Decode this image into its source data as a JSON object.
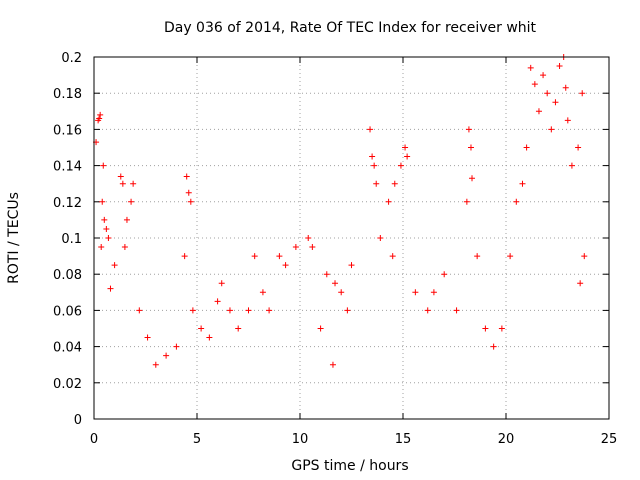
{
  "chart_data": {
    "type": "scatter",
    "title": "Day 036 of 2014, Rate Of TEC Index for receiver whit",
    "xlabel": "GPS time / hours",
    "ylabel": "ROTI / TECUs",
    "xlim": [
      0,
      25
    ],
    "ylim": [
      0,
      0.2
    ],
    "xticks": [
      "0",
      "5",
      "10",
      "15",
      "20",
      "25"
    ],
    "yticks": [
      "0",
      "0.02",
      "0.04",
      "0.06",
      "0.08",
      "0.1",
      "0.12",
      "0.14",
      "0.16",
      "0.18",
      "0.2"
    ],
    "grid": true,
    "marker": "+",
    "color": "#ff0000",
    "series": [
      {
        "points": [
          [
            0.1,
            0.153
          ],
          [
            0.2,
            0.165
          ],
          [
            0.3,
            0.168
          ],
          [
            0.25,
            0.166
          ],
          [
            0.4,
            0.12
          ],
          [
            0.5,
            0.11
          ],
          [
            0.6,
            0.105
          ],
          [
            0.45,
            0.14
          ],
          [
            0.35,
            0.095
          ],
          [
            0.7,
            0.1
          ],
          [
            0.8,
            0.072
          ],
          [
            1.0,
            0.085
          ],
          [
            1.3,
            0.134
          ],
          [
            1.4,
            0.13
          ],
          [
            1.6,
            0.11
          ],
          [
            1.8,
            0.12
          ],
          [
            1.9,
            0.13
          ],
          [
            1.5,
            0.095
          ],
          [
            2.2,
            0.06
          ],
          [
            2.6,
            0.045
          ],
          [
            3.0,
            0.03
          ],
          [
            3.5,
            0.035
          ],
          [
            4.0,
            0.04
          ],
          [
            4.4,
            0.09
          ],
          [
            4.5,
            0.134
          ],
          [
            4.6,
            0.125
          ],
          [
            4.7,
            0.12
          ],
          [
            4.8,
            0.06
          ],
          [
            5.2,
            0.05
          ],
          [
            5.6,
            0.045
          ],
          [
            6.0,
            0.065
          ],
          [
            6.2,
            0.075
          ],
          [
            6.6,
            0.06
          ],
          [
            7.0,
            0.05
          ],
          [
            7.5,
            0.06
          ],
          [
            7.8,
            0.09
          ],
          [
            8.2,
            0.07
          ],
          [
            8.5,
            0.06
          ],
          [
            9.0,
            0.09
          ],
          [
            9.3,
            0.085
          ],
          [
            9.8,
            0.095
          ],
          [
            10.4,
            0.1
          ],
          [
            10.6,
            0.095
          ],
          [
            11.0,
            0.05
          ],
          [
            11.3,
            0.08
          ],
          [
            11.7,
            0.075
          ],
          [
            12.0,
            0.07
          ],
          [
            12.5,
            0.085
          ],
          [
            12.3,
            0.06
          ],
          [
            11.6,
            0.03
          ],
          [
            13.4,
            0.16
          ],
          [
            13.5,
            0.145
          ],
          [
            13.6,
            0.14
          ],
          [
            13.7,
            0.13
          ],
          [
            13.9,
            0.1
          ],
          [
            14.3,
            0.12
          ],
          [
            14.6,
            0.13
          ],
          [
            14.9,
            0.14
          ],
          [
            15.1,
            0.15
          ],
          [
            15.2,
            0.145
          ],
          [
            14.5,
            0.09
          ],
          [
            15.6,
            0.07
          ],
          [
            16.2,
            0.06
          ],
          [
            16.5,
            0.07
          ],
          [
            17.0,
            0.08
          ],
          [
            17.6,
            0.06
          ],
          [
            18.2,
            0.16
          ],
          [
            18.3,
            0.15
          ],
          [
            18.35,
            0.133
          ],
          [
            18.1,
            0.12
          ],
          [
            18.6,
            0.09
          ],
          [
            19.0,
            0.05
          ],
          [
            19.4,
            0.04
          ],
          [
            19.8,
            0.05
          ],
          [
            20.2,
            0.09
          ],
          [
            20.5,
            0.12
          ],
          [
            20.8,
            0.13
          ],
          [
            21.0,
            0.15
          ],
          [
            21.2,
            0.194
          ],
          [
            21.4,
            0.185
          ],
          [
            21.6,
            0.17
          ],
          [
            21.8,
            0.19
          ],
          [
            22.0,
            0.18
          ],
          [
            22.2,
            0.16
          ],
          [
            22.4,
            0.175
          ],
          [
            22.6,
            0.195
          ],
          [
            22.8,
            0.2
          ],
          [
            22.9,
            0.183
          ],
          [
            23.0,
            0.165
          ],
          [
            23.2,
            0.14
          ],
          [
            23.5,
            0.15
          ],
          [
            23.7,
            0.18
          ],
          [
            23.8,
            0.09
          ],
          [
            23.6,
            0.075
          ]
        ]
      }
    ]
  }
}
